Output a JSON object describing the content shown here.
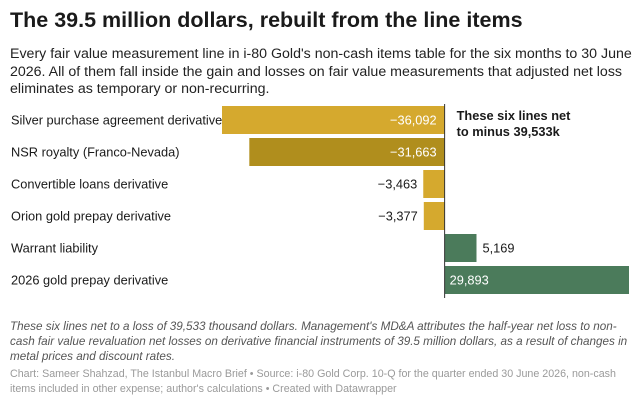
{
  "title": "The 39.5 million dollars, rebuilt from the line items",
  "subtitle": "Every fair value measurement line in i-80 Gold's non-cash items table for the six months to 30 June 2026. All of them fall inside the gain and losses on fair value measurements that adjusted net loss eliminates as temporary or non-recurring.",
  "note": "These six lines net to a loss of 39,533 thousand dollars. Management's MD&A attributes the half-year net loss to non-cash fair value revaluation net losses on derivative financial instruments of 39.5 million dollars, as a result of changes in metal prices and discount rates.",
  "source": "Chart: Sameer Shahzad, The Istanbul Macro Brief • Source: i-80 Gold Corp. 10-Q for the quarter ended 30 June 2026, non-cash items included in other expense; author's calculations • Created with Datawrapper",
  "colors": {
    "gold": "#d5a92e",
    "dark_gold": "#b08e1d",
    "green": "#4b7b5b",
    "label_dark": "#1a1a1a",
    "label_light": "#ffffff"
  },
  "chart_data": {
    "type": "bar",
    "orientation": "horizontal",
    "categories": [
      "Silver purchase agreement derivative",
      "NSR royalty (Franco-Nevada)",
      "Convertible loans derivative",
      "Orion gold prepay derivative",
      "Warrant liability",
      "2026 gold prepay derivative"
    ],
    "values": [
      -36092,
      -31663,
      -3463,
      -3377,
      5169,
      29893
    ],
    "value_labels": [
      "−36,092",
      "−31,663",
      "−3,463",
      "−3,377",
      "5,169",
      "29,893"
    ],
    "bar_colors": [
      "#d5a92e",
      "#b08e1d",
      "#d5a92e",
      "#d5a92e",
      "#4b7b5b",
      "#4b7b5b"
    ],
    "annotation": "These six lines net to minus 39,533k",
    "xlim": [
      -36092,
      29893
    ],
    "grid": false,
    "units": "thousand dollars"
  }
}
